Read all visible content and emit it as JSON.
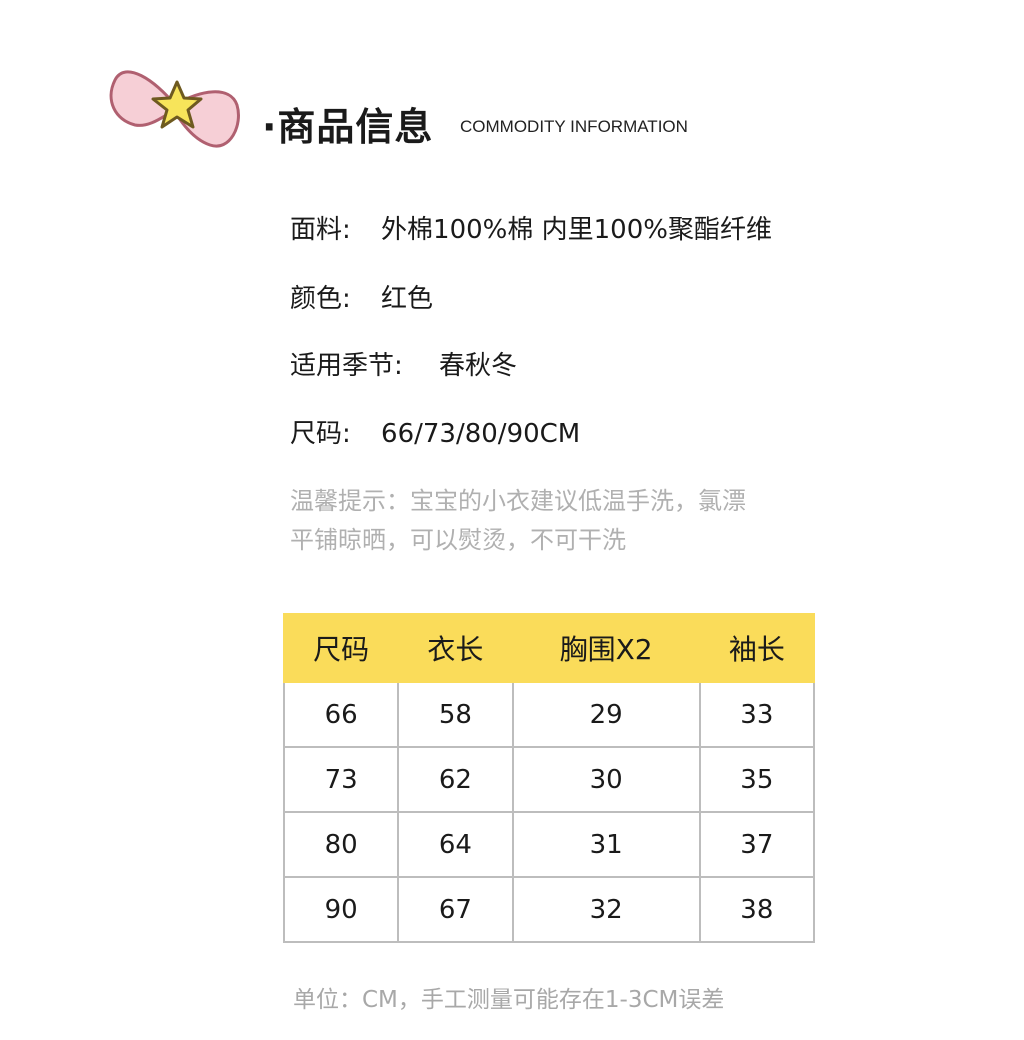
{
  "header": {
    "title": "·商品信息",
    "subtitle": "COMMODITY INFORMATION"
  },
  "info": [
    {
      "label": "面料:",
      "value": "外棉100%棉  内里100%聚酯纤维"
    },
    {
      "label": "颜色:",
      "value": "红色"
    },
    {
      "label": "适用季节:",
      "value": "春秋冬"
    },
    {
      "label": "尺码:",
      "value": "66/73/80/90CM"
    }
  ],
  "tip": {
    "line1": "温馨提示：宝宝的小衣建议低温手洗，氯漂",
    "line2": "平铺晾晒，可以熨烫，不可干洗"
  },
  "size_table": {
    "headers": [
      "尺码",
      "衣长",
      "胸围X2",
      "袖长"
    ],
    "rows": [
      [
        "66",
        "58",
        "29",
        "33"
      ],
      [
        "73",
        "62",
        "30",
        "35"
      ],
      [
        "80",
        "64",
        "31",
        "37"
      ],
      [
        "90",
        "67",
        "32",
        "38"
      ]
    ]
  },
  "note": "单位：CM，手工测量可能存在1-3CM误差",
  "colors": {
    "header_yellow": "#fadc5a",
    "tip_gray": "#b0b0b0",
    "bow_pink": "#f6cfd6",
    "star_yellow": "#f7e45a"
  }
}
